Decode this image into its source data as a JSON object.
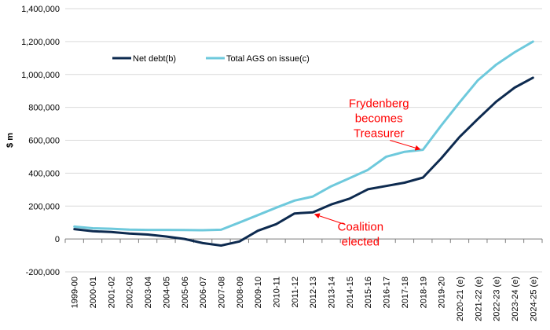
{
  "chart_data": {
    "type": "line",
    "title": "",
    "xlabel": "",
    "ylabel": "$ m",
    "ylim": [
      -200000,
      1400000
    ],
    "yticks": [
      -200000,
      0,
      200000,
      400000,
      600000,
      800000,
      1000000,
      1200000,
      1400000
    ],
    "ytick_labels": [
      "-200,000",
      "0",
      "200,000",
      "400,000",
      "600,000",
      "800,000",
      "1,000,000",
      "1,200,000",
      "1,400,000"
    ],
    "grid": "horizontal",
    "legend_position": "top-left",
    "categories": [
      "1999-00",
      "2000-01",
      "2001-02",
      "2002-03",
      "2003-04",
      "2004-05",
      "2005-06",
      "2006-07",
      "2007-08",
      "2008-09",
      "2009-10",
      "2010-11",
      "2011-12",
      "2012-13",
      "2013-14",
      "2014-15",
      "2015-16",
      "2016-17",
      "2017-18",
      "2018-19",
      "2019-20",
      "2020-21 (e)",
      "2021-22 (e)",
      "2022-23 (e)",
      "2023-24 (e)",
      "2024-25 (e)"
    ],
    "series": [
      {
        "name": "Net debt(b)",
        "color": "#0d2a4f",
        "values": [
          60000,
          47000,
          42000,
          33000,
          27000,
          15000,
          0,
          -25000,
          -40000,
          -15000,
          50000,
          90000,
          155000,
          162000,
          210000,
          245000,
          302000,
          322000,
          342000,
          373000,
          490000,
          620000,
          730000,
          835000,
          920000,
          980000
        ]
      },
      {
        "name": "Total AGS on issue(c)",
        "color": "#6ec9dc",
        "values": [
          75000,
          65000,
          62000,
          57000,
          55000,
          55000,
          54000,
          53000,
          56000,
          100000,
          145000,
          190000,
          233000,
          258000,
          320000,
          370000,
          420000,
          500000,
          530000,
          542000,
          690000,
          830000,
          965000,
          1060000,
          1135000,
          1200000
        ]
      }
    ],
    "annotations": [
      {
        "id": "frydenberg",
        "lines": [
          "Frydenberg",
          "becomes",
          "Treasurer"
        ],
        "text_category": 16.6,
        "text_value": 800000,
        "arrow_from_category": 17.2,
        "arrow_from_value": 600000,
        "arrow_to_category": 18.85,
        "arrow_to_value": 545000
      },
      {
        "id": "coalition",
        "lines": [
          "Coalition",
          "elected"
        ],
        "text_category": 15.6,
        "text_value": 50000,
        "arrow_from_category": 14.7,
        "arrow_from_value": 90000,
        "arrow_to_category": 13.1,
        "arrow_to_value": 150000
      }
    ]
  }
}
